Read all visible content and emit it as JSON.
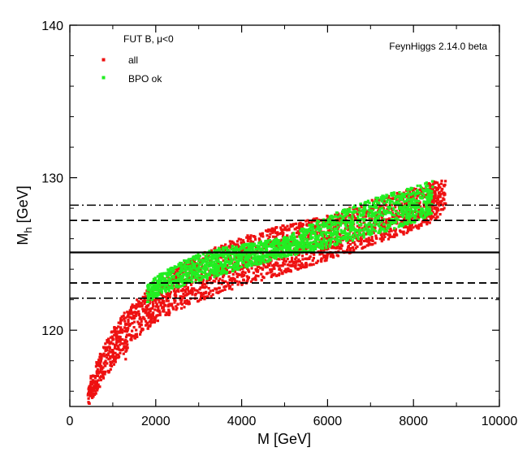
{
  "chart_data": {
    "type": "scatter",
    "title": "",
    "xlabel": "M [GeV]",
    "ylabel_main": "M",
    "ylabel_sub": "h",
    "ylabel_unit": " [GeV]",
    "xlim": [
      0,
      10000
    ],
    "ylim": [
      115,
      140
    ],
    "xticks": [
      0,
      2000,
      4000,
      6000,
      8000,
      10000
    ],
    "yticks": [
      120,
      130,
      140
    ],
    "annotation": "FeynHiggs 2.14.0 beta",
    "legend_title_prefix": "FUT B, ",
    "legend_title_mu": "μ",
    "legend_title_suffix": "<0",
    "series": [
      {
        "name": "all",
        "color": "#ee1111",
        "band": [
          {
            "x": 420,
            "ymin": 115.0,
            "ymax": 116.6
          },
          {
            "x": 600,
            "ymin": 115.8,
            "ymax": 117.8
          },
          {
            "x": 800,
            "ymin": 116.8,
            "ymax": 119.0
          },
          {
            "x": 1000,
            "ymin": 117.6,
            "ymax": 120.1
          },
          {
            "x": 1300,
            "ymin": 118.6,
            "ymax": 121.3
          },
          {
            "x": 1600,
            "ymin": 119.6,
            "ymax": 122.1
          },
          {
            "x": 2000,
            "ymin": 120.5,
            "ymax": 123.2
          },
          {
            "x": 2500,
            "ymin": 121.3,
            "ymax": 124.1
          },
          {
            "x": 3000,
            "ymin": 121.9,
            "ymax": 125.0
          },
          {
            "x": 3500,
            "ymin": 122.4,
            "ymax": 125.6
          },
          {
            "x": 4000,
            "ymin": 122.9,
            "ymax": 126.1
          },
          {
            "x": 5000,
            "ymin": 123.7,
            "ymax": 126.9
          },
          {
            "x": 6000,
            "ymin": 124.6,
            "ymax": 127.5
          },
          {
            "x": 7000,
            "ymin": 125.5,
            "ymax": 128.5
          },
          {
            "x": 8000,
            "ymin": 126.5,
            "ymax": 129.3
          },
          {
            "x": 8500,
            "ymin": 127.2,
            "ymax": 129.8
          },
          {
            "x": 8750,
            "ymin": 128.0,
            "ymax": 129.9
          }
        ]
      },
      {
        "name": "BPO ok",
        "color": "#22ee22",
        "band": [
          {
            "x": 1800,
            "ymin": 121.7,
            "ymax": 122.9
          },
          {
            "x": 2000,
            "ymin": 122.2,
            "ymax": 123.5
          },
          {
            "x": 2500,
            "ymin": 122.8,
            "ymax": 124.4
          },
          {
            "x": 3000,
            "ymin": 123.2,
            "ymax": 125.0
          },
          {
            "x": 3500,
            "ymin": 123.6,
            "ymax": 125.4
          },
          {
            "x": 4000,
            "ymin": 124.0,
            "ymax": 125.6
          },
          {
            "x": 5000,
            "ymin": 124.8,
            "ymax": 126.1
          },
          {
            "x": 6000,
            "ymin": 125.4,
            "ymax": 127.5
          },
          {
            "x": 7000,
            "ymin": 126.2,
            "ymax": 128.6
          },
          {
            "x": 8000,
            "ymin": 127.0,
            "ymax": 129.4
          },
          {
            "x": 8450,
            "ymin": 127.6,
            "ymax": 129.8
          }
        ]
      }
    ],
    "hlines": [
      {
        "y": 125.1,
        "style": "solid"
      },
      {
        "y": 127.2,
        "style": "dashed"
      },
      {
        "y": 123.1,
        "style": "dashed"
      },
      {
        "y": 128.2,
        "style": "dashdot"
      },
      {
        "y": 122.1,
        "style": "dashdot"
      }
    ]
  }
}
